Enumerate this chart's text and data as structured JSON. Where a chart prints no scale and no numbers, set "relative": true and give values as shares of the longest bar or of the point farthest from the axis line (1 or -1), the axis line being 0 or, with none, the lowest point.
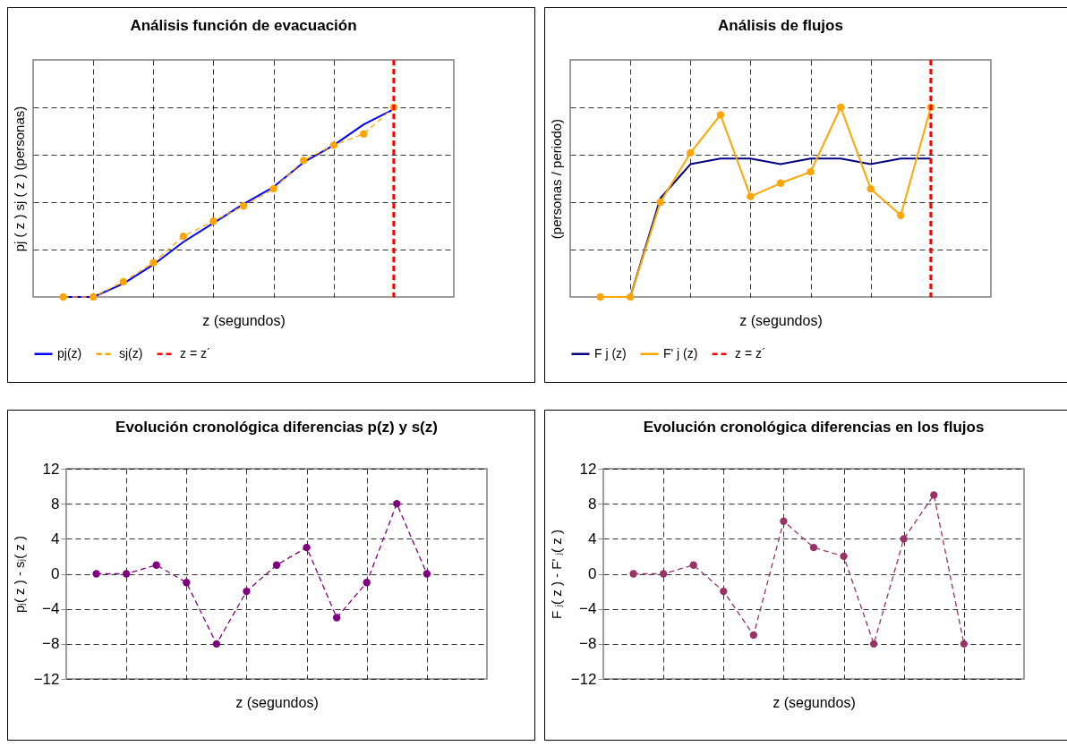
{
  "chart_data": [
    {
      "type": "line",
      "title": "Análisis función de evacuación",
      "xlabel": "z   (segundos)",
      "ylabel": "pj ( z )   sj ( z )  (personas)",
      "relative": true,
      "grid": true,
      "tick_labels": false,
      "legend": "bottom",
      "categories": [
        null,
        null,
        null,
        null,
        null,
        null,
        null,
        null,
        null,
        null,
        null,
        null
      ],
      "series": [
        {
          "name": "pj(z)",
          "color": "#0000ff",
          "line_style": "solid",
          "marker": "none",
          "values": [
            0,
            0,
            0.07,
            0.17,
            0.29,
            0.39,
            0.49,
            0.58,
            0.71,
            0.8,
            0.91,
            0.99
          ]
        },
        {
          "name": "sj(z)",
          "color": "#ffa500",
          "line_style": "dashed",
          "marker": "circle",
          "values": [
            0,
            0,
            0.08,
            0.18,
            0.32,
            0.4,
            0.48,
            0.57,
            0.72,
            0.8,
            0.86,
            1
          ]
        }
      ],
      "ref_lines": [
        {
          "axis": "x",
          "label": "z = z´",
          "color": "#ff0000",
          "line_style": "dashed"
        }
      ]
    },
    {
      "type": "line",
      "title": "Análisis de flujos",
      "xlabel": "z   (segundos)",
      "ylabel": "(personas / periodo)",
      "relative": true,
      "grid": true,
      "tick_labels": false,
      "legend": "bottom",
      "categories": [
        null,
        null,
        null,
        null,
        null,
        null,
        null,
        null,
        null,
        null,
        null,
        null
      ],
      "series": [
        {
          "name": "F j (z)",
          "color": "#000080",
          "line_style": "solid",
          "marker": "none",
          "values": [
            0,
            0,
            0.52,
            0.7,
            0.73,
            0.73,
            0.7,
            0.73,
            0.73,
            0.7,
            0.73,
            0.73
          ]
        },
        {
          "name": "F' j (z)",
          "color": "#ffa500",
          "line_style": "solid",
          "marker": "circle",
          "values": [
            0,
            0,
            0.5,
            0.76,
            0.96,
            0.53,
            0.6,
            0.66,
            1,
            0.57,
            0.43,
            1
          ]
        }
      ],
      "ref_lines": [
        {
          "axis": "x",
          "label": "z = z´",
          "color": "#ff0000",
          "line_style": "dashed"
        }
      ]
    },
    {
      "type": "line",
      "title": "Evolución cronológica diferencias p(z) y s(z)",
      "xlabel": "z (segundos)",
      "ylabel": "pⱼ( z ) - sⱼ( z )",
      "grid": true,
      "tick_labels": "y",
      "categories": [
        null,
        null,
        null,
        null,
        null,
        null,
        null,
        null,
        null,
        null,
        null,
        null
      ],
      "ylim": [
        -12,
        12
      ],
      "yticks": [
        -12,
        -8,
        -4,
        0,
        4,
        8,
        12
      ],
      "series": [
        {
          "color": "#800080",
          "line_style": "dashed",
          "marker": "circle",
          "values": [
            0,
            0,
            1,
            -1,
            -8,
            -2,
            1,
            3,
            -5,
            -1,
            8,
            0
          ]
        }
      ]
    },
    {
      "type": "line",
      "title": "Evolución cronológica diferencias en los flujos",
      "xlabel": "z (segundos)",
      "ylabel": "F ⱼ( z ) - F' ⱼ( z )",
      "grid": true,
      "tick_labels": "y",
      "categories": [
        null,
        null,
        null,
        null,
        null,
        null,
        null,
        null,
        null,
        null,
        null,
        null
      ],
      "ylim": [
        -12,
        12
      ],
      "yticks": [
        -12,
        -8,
        -4,
        0,
        4,
        8,
        12
      ],
      "series": [
        {
          "color": "#993366",
          "line_style": "dashed",
          "marker": "circle",
          "values": [
            0,
            0,
            1,
            -2,
            -7,
            6,
            3,
            2,
            -8,
            4,
            9,
            -8
          ]
        }
      ]
    }
  ]
}
